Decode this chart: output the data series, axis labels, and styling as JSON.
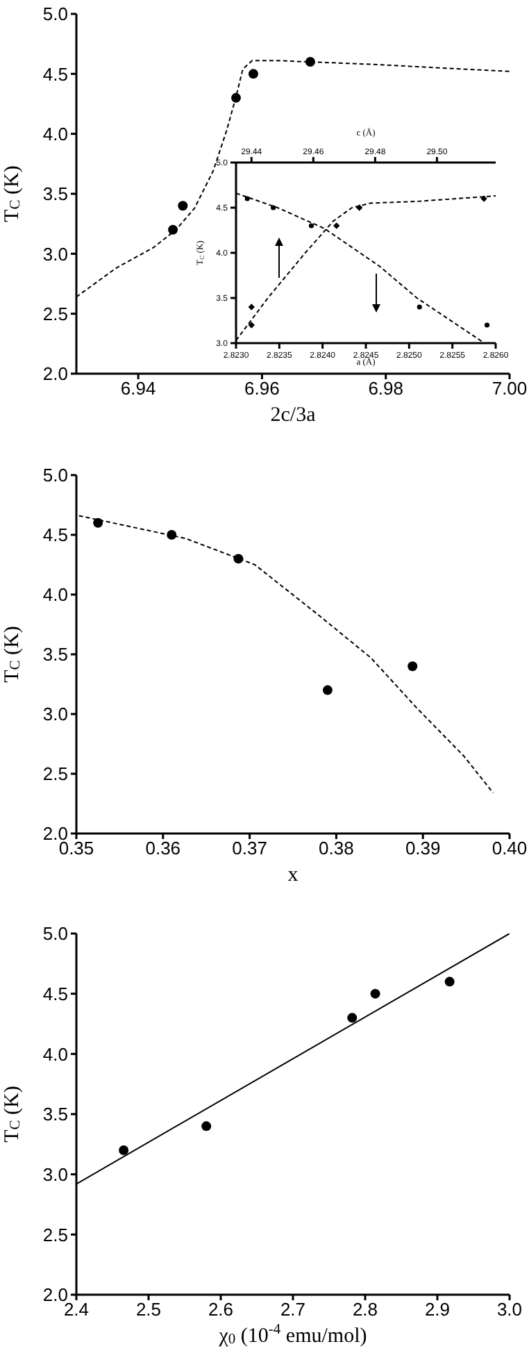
{
  "chart_data": [
    {
      "type": "scatter",
      "xlabel": "2c/3a",
      "ylabel": "T$_{C}$ (K)",
      "xlim": [
        6.93,
        7.0
      ],
      "xticks": [
        6.94,
        6.96,
        6.98,
        {
          "value": 7.0,
          "label": "7.00"
        }
      ],
      "ylim": [
        2.0,
        5.0
      ],
      "yticks": [
        {
          "value": 2,
          "label": "2.0"
        },
        2.5,
        {
          "value": 3,
          "label": "3.0"
        },
        3.5,
        {
          "value": 4,
          "label": "4.0"
        },
        4.5,
        {
          "value": 5,
          "label": "5.0"
        }
      ],
      "grid": false,
      "legend": false,
      "series": [
        {
          "type": "scatter",
          "color": "#000000",
          "marker": "circle",
          "x": [
            6.9456,
            6.9472,
            6.9558,
            6.9586,
            6.9678
          ],
          "values": [
            3.2,
            3.4,
            4.3,
            4.5,
            4.6
          ]
        },
        {
          "type": "line",
          "color": "#000000",
          "marker": "none",
          "line_style": "dashed",
          "x": [
            6.93,
            6.9364,
            6.9424,
            6.9461,
            6.9491,
            6.9521,
            6.9543,
            6.9558,
            6.9569,
            6.9584,
            6.9626,
            6.9775,
            7.0
          ],
          "values": [
            2.64,
            2.88,
            3.05,
            3.2,
            3.38,
            3.69,
            4.03,
            4.31,
            4.54,
            4.61,
            4.61,
            4.58,
            4.52
          ]
        }
      ]
    },
    {
      "type": "scatter",
      "xlabel": "a (Å)",
      "x2label": "c (Å)",
      "ylabel": "T$_{C}$ (K)",
      "xlim": [
        2.823,
        2.826
      ],
      "xticks": [
        {
          "value": 2.823,
          "label": "2.8230"
        },
        2.8235,
        {
          "value": 2.824,
          "label": "2.8240"
        },
        2.8245,
        {
          "value": 2.825,
          "label": "2.8250"
        },
        2.8255,
        {
          "value": 2.826,
          "label": "2.8260"
        }
      ],
      "x2lim": [
        29.435,
        29.519
      ],
      "x2ticks": [
        29.44,
        29.46,
        29.48,
        {
          "value": 29.5,
          "label": "29.50"
        }
      ],
      "ylim": [
        3.0,
        5.0
      ],
      "yticks": [
        {
          "value": 3,
          "label": "3.0"
        },
        3.5,
        {
          "value": 4,
          "label": "4.0"
        },
        4.5,
        {
          "value": 5,
          "label": "5.0"
        }
      ],
      "grid": false,
      "legend": false,
      "series": [
        {
          "type": "scatter",
          "color": "#000000",
          "marker": "circle",
          "x": [
            2.82313,
            2.82343,
            2.82387,
            2.82512,
            2.8259
          ],
          "values": [
            4.6,
            4.5,
            4.3,
            3.4,
            3.2
          ]
        },
        {
          "type": "line",
          "color": "#000000",
          "marker": "none",
          "line_style": "dashed",
          "x": [
            2.823,
            2.82348,
            2.82402,
            2.82466,
            2.82509,
            2.82587
          ],
          "values": [
            4.66,
            4.5,
            4.27,
            3.85,
            3.5,
            3.0
          ]
        },
        {
          "type": "scatter",
          "axis": "x2",
          "color": "#000000",
          "marker": "diamond",
          "x": [
            29.44,
            29.44,
            29.4675,
            29.4749,
            29.5152
          ],
          "values": [
            3.2,
            3.4,
            4.3,
            4.5,
            4.6
          ]
        },
        {
          "type": "line",
          "axis": "x2",
          "color": "#000000",
          "marker": "none",
          "line_style": "dashed",
          "x": [
            29.435,
            29.4453,
            29.4574,
            29.4664,
            29.4725,
            29.4785,
            29.4936,
            29.519
          ],
          "values": [
            3.03,
            3.5,
            4.0,
            4.35,
            4.5,
            4.55,
            4.57,
            4.63
          ]
        }
      ]
    },
    {
      "type": "scatter",
      "xlabel": "x",
      "ylabel": "T$_{C}$ (K)",
      "xlim": [
        0.35,
        0.4
      ],
      "xticks": [
        0.35,
        0.36,
        0.37,
        0.38,
        0.39,
        {
          "value": 0.4,
          "label": "0.40"
        }
      ],
      "ylim": [
        2.0,
        5.0
      ],
      "yticks": [
        {
          "value": 2,
          "label": "2.0"
        },
        2.5,
        {
          "value": 3,
          "label": "3.0"
        },
        3.5,
        {
          "value": 4,
          "label": "4.0"
        },
        4.5,
        {
          "value": 5,
          "label": "5.0"
        }
      ],
      "grid": false,
      "legend": false,
      "series": [
        {
          "type": "scatter",
          "color": "#000000",
          "marker": "circle",
          "x": [
            0.3525,
            0.361,
            0.3687,
            0.379,
            0.3888
          ],
          "values": [
            4.6,
            4.5,
            4.3,
            3.2,
            3.4
          ]
        },
        {
          "type": "line",
          "color": "#000000",
          "marker": "none",
          "line_style": "dashed",
          "x": [
            0.3503,
            0.3626,
            0.3706,
            0.3781,
            0.384,
            0.3893,
            0.3947,
            0.3981
          ],
          "values": [
            4.66,
            4.47,
            4.25,
            3.82,
            3.47,
            3.05,
            2.65,
            2.34
          ]
        }
      ]
    },
    {
      "type": "scatter",
      "xlabel": "χ$_{0}$ (10$^{-4}$emu/mol)",
      "ylabel": "T$_{C}$ (K)",
      "xlim": [
        2.4,
        3.0
      ],
      "xticks": [
        2.4,
        2.5,
        2.6,
        2.7,
        2.8,
        2.9,
        {
          "value": 3,
          "label": "3.0"
        }
      ],
      "ylim": [
        2.0,
        5.0
      ],
      "yticks": [
        {
          "value": 2,
          "label": "2.0"
        },
        2.5,
        {
          "value": 3,
          "label": "3.0"
        },
        3.5,
        {
          "value": 4,
          "label": "4.0"
        },
        4.5,
        {
          "value": 5,
          "label": "5.0"
        }
      ],
      "grid": false,
      "legend": false,
      "series": [
        {
          "type": "scatter",
          "color": "#000000",
          "marker": "circle",
          "x": [
            2.4655,
            2.58,
            2.782,
            2.814,
            2.917
          ],
          "values": [
            3.2,
            3.4,
            4.3,
            4.5,
            4.6
          ]
        },
        {
          "type": "line",
          "color": "#000000",
          "marker": "none",
          "line_style": "solid",
          "x": [
            2.4,
            3.0
          ],
          "values": [
            2.92,
            5.0
          ]
        }
      ]
    }
  ]
}
